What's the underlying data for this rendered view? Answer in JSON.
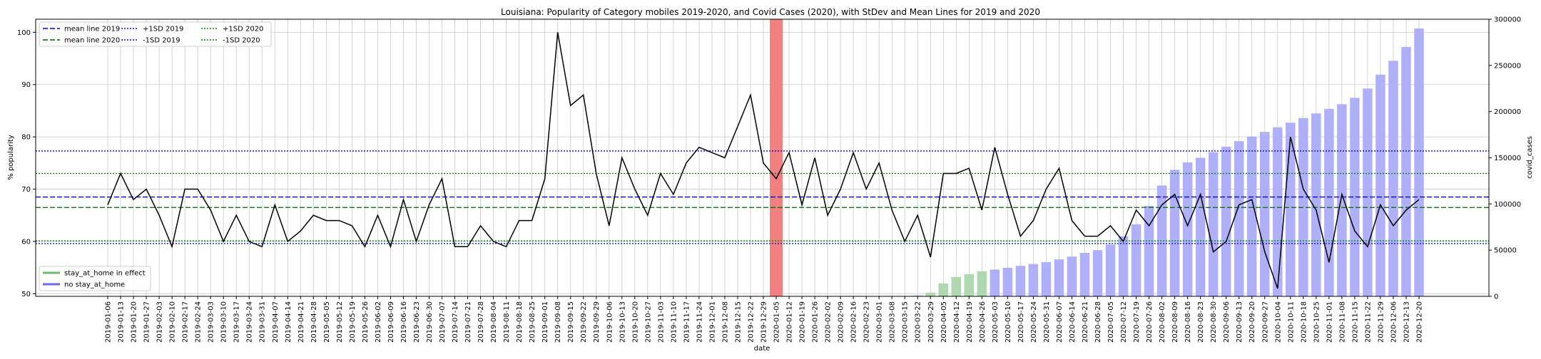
{
  "chart_data": {
    "type": "bar+line",
    "title": "Louisiana: Popularity of Category mobiles 2019-2020, and Covid Cases (2020), with StDev and Mean Lines for 2019 and 2020",
    "xlabel": "date",
    "ylabel_left": "% popularity",
    "ylabel_right": "covid_cases",
    "ylim_left": [
      49.5,
      102.5
    ],
    "ylim_right": [
      0,
      300000
    ],
    "yticks_left": [
      50,
      60,
      70,
      80,
      90,
      100
    ],
    "yticks_right": [
      0,
      50000,
      100000,
      150000,
      200000,
      250000,
      300000
    ],
    "ytick_labels_right": [
      "0",
      "50000",
      "100000",
      "150000",
      "200000",
      "250000",
      "300000"
    ],
    "grid": true,
    "dates": [
      "2019-01-06",
      "2019-01-13",
      "2019-01-20",
      "2019-01-27",
      "2019-02-03",
      "2019-02-10",
      "2019-02-17",
      "2019-02-24",
      "2019-03-03",
      "2019-03-10",
      "2019-03-17",
      "2019-03-24",
      "2019-03-31",
      "2019-04-07",
      "2019-04-14",
      "2019-04-21",
      "2019-04-28",
      "2019-05-05",
      "2019-05-12",
      "2019-05-19",
      "2019-05-26",
      "2019-06-02",
      "2019-06-09",
      "2019-06-16",
      "2019-06-23",
      "2019-06-30",
      "2019-07-07",
      "2019-07-14",
      "2019-07-21",
      "2019-07-28",
      "2019-08-04",
      "2019-08-11",
      "2019-08-18",
      "2019-08-25",
      "2019-09-01",
      "2019-09-08",
      "2019-09-15",
      "2019-09-22",
      "2019-09-29",
      "2019-10-06",
      "2019-10-13",
      "2019-10-20",
      "2019-10-27",
      "2019-11-03",
      "2019-11-10",
      "2019-11-17",
      "2019-11-24",
      "2019-12-01",
      "2019-12-08",
      "2019-12-15",
      "2019-12-22",
      "2019-12-29",
      "2020-01-05",
      "2020-01-12",
      "2020-01-19",
      "2020-01-26",
      "2020-02-02",
      "2020-02-09",
      "2020-02-16",
      "2020-02-23",
      "2020-03-01",
      "2020-03-08",
      "2020-03-15",
      "2020-03-22",
      "2020-03-29",
      "2020-04-05",
      "2020-04-12",
      "2020-04-19",
      "2020-04-26",
      "2020-05-03",
      "2020-05-10",
      "2020-05-17",
      "2020-05-24",
      "2020-05-31",
      "2020-06-07",
      "2020-06-14",
      "2020-06-21",
      "2020-06-28",
      "2020-07-05",
      "2020-07-12",
      "2020-07-19",
      "2020-07-26",
      "2020-08-02",
      "2020-08-09",
      "2020-08-16",
      "2020-08-23",
      "2020-08-30",
      "2020-09-06",
      "2020-09-13",
      "2020-09-20",
      "2020-09-27",
      "2020-10-04",
      "2020-10-11",
      "2020-10-18",
      "2020-10-25",
      "2020-11-01",
      "2020-11-08",
      "2020-11-15",
      "2020-11-22",
      "2020-11-29",
      "2020-12-06",
      "2020-12-13",
      "2020-12-20"
    ],
    "popularity": [
      67,
      73,
      68,
      70,
      65,
      59,
      70,
      70,
      66,
      60,
      65,
      60,
      59,
      67,
      60,
      62,
      65,
      64,
      64,
      63,
      59,
      65,
      59,
      68,
      60,
      67,
      72,
      59,
      59,
      63,
      60,
      59,
      64,
      64,
      72,
      100,
      86,
      88,
      73,
      63,
      76,
      70,
      65,
      73,
      69,
      75,
      78,
      77,
      76,
      82,
      88,
      75,
      72,
      77,
      67,
      76,
      65,
      70,
      77,
      70,
      75,
      66,
      60,
      65,
      57,
      73,
      73,
      74,
      66,
      78,
      69,
      61,
      64,
      70,
      74,
      64,
      61,
      61,
      63,
      60,
      66,
      63,
      67,
      69,
      63,
      69,
      58,
      60,
      67,
      68,
      58,
      51,
      80,
      70,
      66,
      56,
      69,
      62,
      59,
      67,
      63,
      66,
      68
    ],
    "covid_cases": [
      0,
      0,
      0,
      0,
      0,
      0,
      0,
      0,
      0,
      0,
      0,
      0,
      0,
      0,
      0,
      0,
      0,
      0,
      0,
      0,
      0,
      0,
      0,
      0,
      0,
      0,
      0,
      0,
      0,
      0,
      0,
      0,
      0,
      0,
      0,
      0,
      0,
      0,
      0,
      0,
      0,
      0,
      0,
      0,
      0,
      0,
      0,
      0,
      0,
      0,
      0,
      0,
      0,
      0,
      0,
      0,
      0,
      0,
      0,
      0,
      0,
      0,
      0,
      1000,
      4000,
      14000,
      21000,
      24000,
      27000,
      29000,
      31000,
      33000,
      35000,
      37000,
      40000,
      43000,
      47000,
      50000,
      56000,
      65000,
      78000,
      98000,
      120000,
      137000,
      145000,
      150000,
      156000,
      162000,
      168000,
      173000,
      178000,
      183000,
      188000,
      193000,
      198000,
      203000,
      208000,
      215000,
      225000,
      240000,
      255000,
      270000,
      290000
    ],
    "stay_at_home": [
      false,
      false,
      false,
      false,
      false,
      false,
      false,
      false,
      false,
      false,
      false,
      false,
      false,
      false,
      false,
      false,
      false,
      false,
      false,
      false,
      false,
      false,
      false,
      false,
      false,
      false,
      false,
      false,
      false,
      false,
      false,
      false,
      false,
      false,
      false,
      false,
      false,
      false,
      false,
      false,
      false,
      false,
      false,
      false,
      false,
      false,
      false,
      false,
      false,
      false,
      false,
      false,
      false,
      false,
      false,
      false,
      false,
      false,
      false,
      false,
      false,
      false,
      false,
      true,
      true,
      true,
      true,
      true,
      true,
      false,
      false,
      false,
      false,
      false,
      false,
      false,
      false,
      false,
      false,
      false,
      false,
      false,
      false,
      false,
      false,
      false,
      false,
      false,
      false,
      false,
      false,
      false,
      false,
      false,
      false,
      false,
      false,
      false,
      false,
      false,
      false,
      false,
      false
    ],
    "highlight_date": "2020-01-05",
    "lines": {
      "mean_2019": 68.5,
      "mean_2020": 66.5,
      "plus1sd_2019": 77.3,
      "minus1sd_2019": 59.6,
      "plus1sd_2020": 73.0,
      "minus1sd_2020": 60.1
    },
    "legend_top": [
      {
        "label": "mean line 2019",
        "color": "#0000cc",
        "dash": "7,3"
      },
      {
        "label": "+1SD 2019",
        "color": "#0000cc",
        "dash": "2,2"
      },
      {
        "label": "+1SD 2020",
        "color": "#008000",
        "dash": "2,2"
      },
      {
        "label": "mean line 2020",
        "color": "#006400",
        "dash": "7,3"
      },
      {
        "label": "-1SD 2019",
        "color": "#0000cc",
        "dash": "2,2"
      },
      {
        "label": "-1SD 2020",
        "color": "#008000",
        "dash": "2,2"
      }
    ],
    "legend_bottom": [
      {
        "label": "stay_at_home in effect",
        "color": "#70b870"
      },
      {
        "label": "no stay_at_home",
        "color": "#6a6af0"
      }
    ],
    "colors": {
      "line": "#000000",
      "bar_no_stay": "#b0b0f8",
      "bar_stay": "#b0d8b0",
      "highlight": "#f28080",
      "grid": "#c8c8c8"
    }
  }
}
